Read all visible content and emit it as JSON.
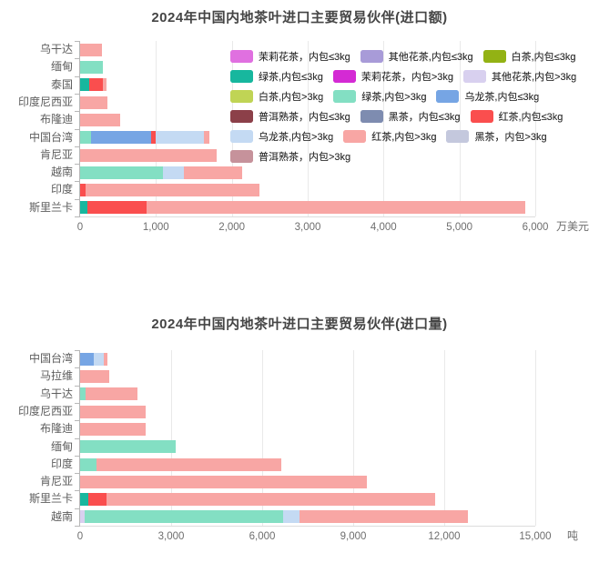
{
  "series": [
    {
      "id": "jasmine_le3",
      "label": "茉莉花茶，内包≤3kg",
      "color": "#e070e0"
    },
    {
      "id": "other_flower_le3",
      "label": "其他花茶,内包≤3kg",
      "color": "#a89bd8"
    },
    {
      "id": "white_le3",
      "label": "白茶,内包≤3kg",
      "color": "#93b214"
    },
    {
      "id": "green_le3",
      "label": "绿茶,内包≤3kg",
      "color": "#17b79e"
    },
    {
      "id": "jasmine_gt3",
      "label": "茉莉花茶，内包>3kg",
      "color": "#d42ad4"
    },
    {
      "id": "other_flower_gt3",
      "label": "其他花茶,内包>3kg",
      "color": "#d8d0ef"
    },
    {
      "id": "white_gt3",
      "label": "白茶,内包>3kg",
      "color": "#c0d455"
    },
    {
      "id": "green_gt3",
      "label": "绿茶,内包>3kg",
      "color": "#83dfc3"
    },
    {
      "id": "oolong_le3",
      "label": "乌龙茶,内包≤3kg",
      "color": "#76a5e4"
    },
    {
      "id": "puer_le3",
      "label": "普洱熟茶，内包≤3kg",
      "color": "#8c4049"
    },
    {
      "id": "dark_le3",
      "label": "黑茶，内包≤3kg",
      "color": "#7e8cb0"
    },
    {
      "id": "red_le3",
      "label": "红茶,内包≤3kg",
      "color": "#fa4e4e"
    },
    {
      "id": "oolong_gt3",
      "label": "乌龙茶,内包>3kg",
      "color": "#c4daf3"
    },
    {
      "id": "red_gt3",
      "label": "红茶,内包>3kg",
      "color": "#f8a6a4"
    },
    {
      "id": "dark_gt3",
      "label": "黑茶，内包>3kg",
      "color": "#c4c8dd"
    },
    {
      "id": "puer_gt3",
      "label": "普洱熟茶，内包>3kg",
      "color": "#c6929b"
    }
  ],
  "legend_rows": [
    [
      "jasmine_le3",
      "other_flower_le3",
      "white_le3"
    ],
    [
      "green_le3",
      "jasmine_gt3",
      "other_flower_gt3"
    ],
    [
      "white_gt3",
      "green_gt3",
      "oolong_le3"
    ],
    [
      "puer_le3",
      "dark_le3",
      "red_le3"
    ],
    [
      "oolong_gt3",
      "red_gt3",
      "dark_gt3"
    ],
    [
      "puer_gt3"
    ]
  ],
  "chart_data": [
    {
      "type": "bar",
      "orientation": "horizontal",
      "stacked": true,
      "title": "2024年中国内地茶叶进口主要贸易伙伴(进口额)",
      "unit": "万美元",
      "xlim": [
        0,
        6000
      ],
      "x_ticks": [
        0,
        1000,
        2000,
        3000,
        4000,
        5000,
        6000
      ],
      "x_tick_labels": [
        "0",
        "1,000",
        "2,000",
        "3,000",
        "4,000",
        "5,000",
        "6,000"
      ],
      "grid": true,
      "legend_position": "top-right-overlay",
      "categories": [
        "乌干达",
        "缅甸",
        "泰国",
        "印度尼西亚",
        "布隆迪",
        "中国台湾",
        "肯尼亚",
        "越南",
        "印度",
        "斯里兰卡"
      ],
      "bars": [
        [
          {
            "series": "red_gt3",
            "value": 285
          }
        ],
        [
          {
            "series": "green_gt3",
            "value": 305
          }
        ],
        [
          {
            "series": "green_le3",
            "value": 125
          },
          {
            "series": "red_le3",
            "value": 175
          },
          {
            "series": "red_gt3",
            "value": 45
          }
        ],
        [
          {
            "series": "red_gt3",
            "value": 365
          }
        ],
        [
          {
            "series": "red_gt3",
            "value": 525
          }
        ],
        [
          {
            "series": "green_gt3",
            "value": 140
          },
          {
            "series": "oolong_le3",
            "value": 800
          },
          {
            "series": "red_le3",
            "value": 55
          },
          {
            "series": "oolong_gt3",
            "value": 640
          },
          {
            "series": "red_gt3",
            "value": 70
          }
        ],
        [
          {
            "series": "red_gt3",
            "value": 1800
          }
        ],
        [
          {
            "series": "green_gt3",
            "value": 1090
          },
          {
            "series": "oolong_gt3",
            "value": 275
          },
          {
            "series": "red_gt3",
            "value": 770
          }
        ],
        [
          {
            "series": "red_le3",
            "value": 70
          },
          {
            "series": "red_gt3",
            "value": 2290
          }
        ],
        [
          {
            "series": "green_le3",
            "value": 100
          },
          {
            "series": "red_le3",
            "value": 775
          },
          {
            "series": "red_gt3",
            "value": 4995
          }
        ]
      ]
    },
    {
      "type": "bar",
      "orientation": "horizontal",
      "stacked": true,
      "title": "2024年中国内地茶叶进口主要贸易伙伴(进口量)",
      "unit": "吨",
      "xlim": [
        0,
        15000
      ],
      "x_ticks": [
        0,
        3000,
        6000,
        9000,
        12000,
        15000
      ],
      "x_tick_labels": [
        "0",
        "3,000",
        "6,000",
        "9,000",
        "12,000",
        "15,000"
      ],
      "grid": true,
      "legend_position": "top-right-overlay",
      "categories": [
        "中国台湾",
        "马拉维",
        "乌干达",
        "印度尼西亚",
        "布隆迪",
        "缅甸",
        "印度",
        "肯尼亚",
        "斯里兰卡",
        "越南"
      ],
      "bars": [
        [
          {
            "series": "oolong_le3",
            "value": 450
          },
          {
            "series": "oolong_gt3",
            "value": 340
          },
          {
            "series": "red_gt3",
            "value": 120
          }
        ],
        [
          {
            "series": "red_gt3",
            "value": 970
          }
        ],
        [
          {
            "series": "green_gt3",
            "value": 190
          },
          {
            "series": "red_gt3",
            "value": 1700
          }
        ],
        [
          {
            "series": "red_gt3",
            "value": 2170
          }
        ],
        [
          {
            "series": "red_gt3",
            "value": 2160
          }
        ],
        [
          {
            "series": "green_gt3",
            "value": 3150
          }
        ],
        [
          {
            "series": "green_gt3",
            "value": 540
          },
          {
            "series": "red_gt3",
            "value": 6090
          }
        ],
        [
          {
            "series": "red_gt3",
            "value": 9440
          }
        ],
        [
          {
            "series": "green_le3",
            "value": 270
          },
          {
            "series": "red_le3",
            "value": 600
          },
          {
            "series": "red_gt3",
            "value": 10820
          }
        ],
        [
          {
            "series": "other_flower_gt3",
            "value": 150
          },
          {
            "series": "green_gt3",
            "value": 6540
          },
          {
            "series": "oolong_gt3",
            "value": 540
          },
          {
            "series": "red_gt3",
            "value": 5550
          }
        ]
      ]
    }
  ]
}
